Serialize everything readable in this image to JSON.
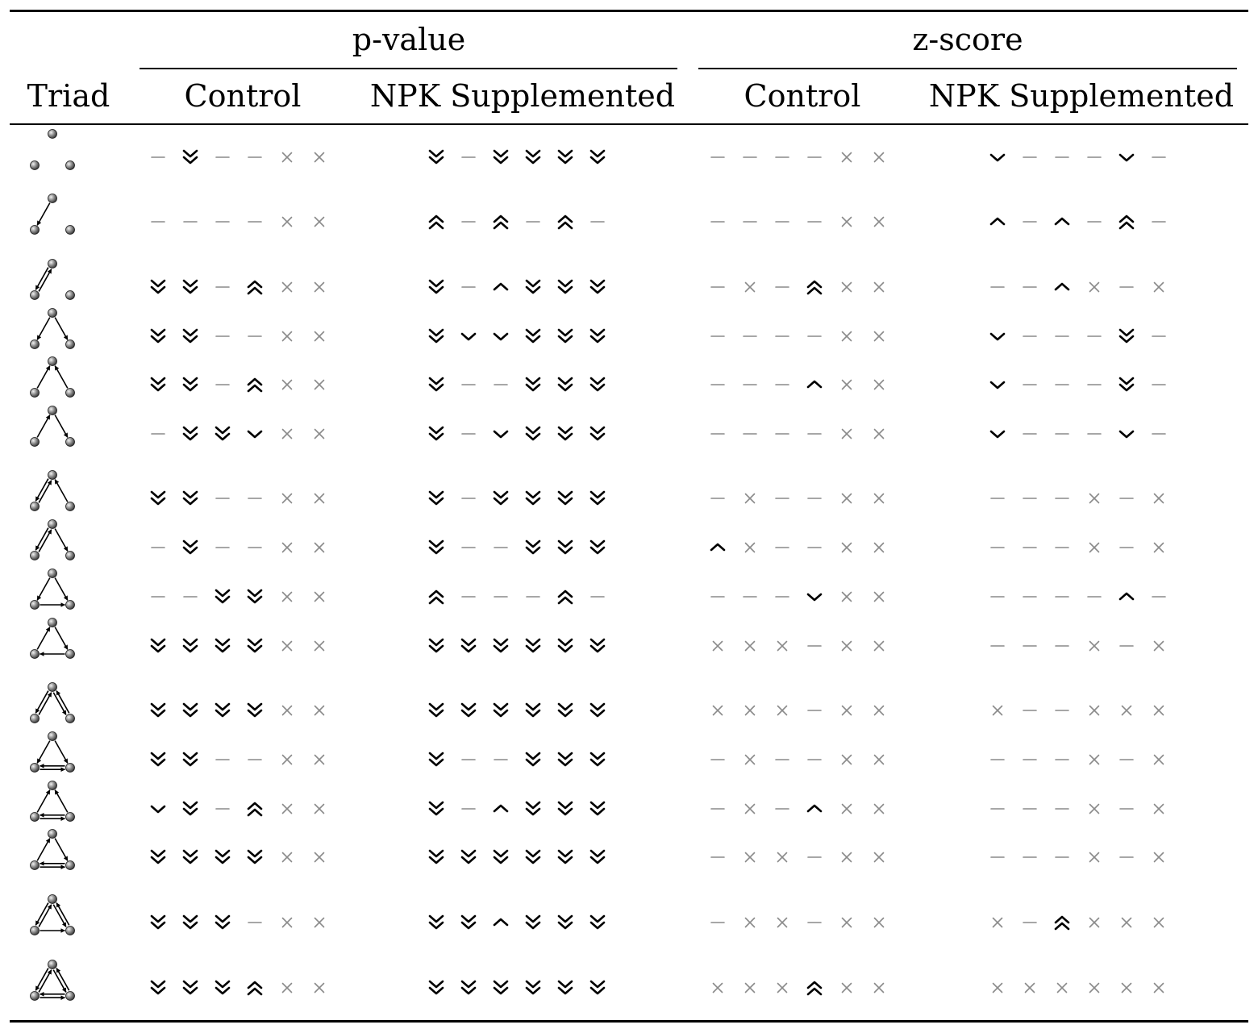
{
  "header": {
    "group_pvalue": "p-value",
    "group_zscore": "z-score",
    "triad": "Triad",
    "cols": [
      "Control",
      "NPK Supplemented",
      "Control",
      "NPK Supplemented"
    ]
  },
  "legend": {
    "dd": "strongly decreased",
    "d": "decreased",
    "n": "no change",
    "u": "increased",
    "uu": "strongly increased",
    "x": "not available"
  },
  "rows": [
    {
      "triad": "003",
      "edges": [],
      "pc": [
        "n",
        "dd",
        "n",
        "n",
        "x",
        "x"
      ],
      "pn": [
        "dd",
        "n",
        "dd",
        "dd",
        "dd",
        "dd"
      ],
      "zc": [
        "n",
        "n",
        "n",
        "n",
        "x",
        "x"
      ],
      "zn": [
        "d",
        "n",
        "n",
        "n",
        "d",
        "n"
      ]
    },
    {
      "triad": "012",
      "edges": [
        [
          "T",
          "L"
        ]
      ],
      "pc": [
        "n",
        "n",
        "n",
        "n",
        "x",
        "x"
      ],
      "pn": [
        "uu",
        "n",
        "uu",
        "n",
        "uu",
        "n"
      ],
      "zc": [
        "n",
        "n",
        "n",
        "n",
        "x",
        "x"
      ],
      "zn": [
        "u",
        "n",
        "u",
        "n",
        "uu",
        "n"
      ]
    },
    {
      "triad": "102",
      "edges": [
        [
          "T",
          "L"
        ],
        [
          "L",
          "T"
        ]
      ],
      "pc": [
        "dd",
        "dd",
        "n",
        "uu",
        "x",
        "x"
      ],
      "pn": [
        "dd",
        "n",
        "u",
        "dd",
        "dd",
        "dd"
      ],
      "zc": [
        "n",
        "x",
        "n",
        "uu",
        "x",
        "x"
      ],
      "zn": [
        "n",
        "n",
        "u",
        "x",
        "n",
        "x"
      ]
    },
    {
      "triad": "021D",
      "edges": [
        [
          "T",
          "L"
        ],
        [
          "T",
          "R"
        ]
      ],
      "pc": [
        "dd",
        "dd",
        "n",
        "n",
        "x",
        "x"
      ],
      "pn": [
        "dd",
        "d",
        "d",
        "dd",
        "dd",
        "dd"
      ],
      "zc": [
        "n",
        "n",
        "n",
        "n",
        "x",
        "x"
      ],
      "zn": [
        "d",
        "n",
        "n",
        "n",
        "dd",
        "n"
      ]
    },
    {
      "triad": "021U",
      "edges": [
        [
          "L",
          "T"
        ],
        [
          "R",
          "T"
        ]
      ],
      "pc": [
        "dd",
        "dd",
        "n",
        "uu",
        "x",
        "x"
      ],
      "pn": [
        "dd",
        "n",
        "n",
        "dd",
        "dd",
        "dd"
      ],
      "zc": [
        "n",
        "n",
        "n",
        "u",
        "x",
        "x"
      ],
      "zn": [
        "d",
        "n",
        "n",
        "n",
        "dd",
        "n"
      ]
    },
    {
      "triad": "021C",
      "edges": [
        [
          "L",
          "T"
        ],
        [
          "T",
          "R"
        ]
      ],
      "pc": [
        "n",
        "dd",
        "dd",
        "d",
        "x",
        "x"
      ],
      "pn": [
        "dd",
        "n",
        "d",
        "dd",
        "dd",
        "dd"
      ],
      "zc": [
        "n",
        "n",
        "n",
        "n",
        "x",
        "x"
      ],
      "zn": [
        "d",
        "n",
        "n",
        "n",
        "d",
        "n"
      ]
    },
    {
      "triad": "111D",
      "edges": [
        [
          "T",
          "L"
        ],
        [
          "L",
          "T"
        ],
        [
          "R",
          "T"
        ]
      ],
      "pc": [
        "dd",
        "dd",
        "n",
        "n",
        "x",
        "x"
      ],
      "pn": [
        "dd",
        "n",
        "dd",
        "dd",
        "dd",
        "dd"
      ],
      "zc": [
        "n",
        "x",
        "n",
        "n",
        "x",
        "x"
      ],
      "zn": [
        "n",
        "n",
        "n",
        "x",
        "n",
        "x"
      ]
    },
    {
      "triad": "111U",
      "edges": [
        [
          "T",
          "L"
        ],
        [
          "L",
          "T"
        ],
        [
          "T",
          "R"
        ]
      ],
      "pc": [
        "n",
        "dd",
        "n",
        "n",
        "x",
        "x"
      ],
      "pn": [
        "dd",
        "n",
        "n",
        "dd",
        "dd",
        "dd"
      ],
      "zc": [
        "u",
        "x",
        "n",
        "n",
        "x",
        "x"
      ],
      "zn": [
        "n",
        "n",
        "n",
        "x",
        "n",
        "x"
      ]
    },
    {
      "triad": "030T",
      "edges": [
        [
          "T",
          "L"
        ],
        [
          "T",
          "R"
        ],
        [
          "L",
          "R"
        ]
      ],
      "pc": [
        "n",
        "n",
        "dd",
        "dd",
        "x",
        "x"
      ],
      "pn": [
        "uu",
        "n",
        "n",
        "n",
        "uu",
        "n"
      ],
      "zc": [
        "n",
        "n",
        "n",
        "d",
        "x",
        "x"
      ],
      "zn": [
        "n",
        "n",
        "n",
        "n",
        "u",
        "n"
      ]
    },
    {
      "triad": "030C",
      "edges": [
        [
          "L",
          "T"
        ],
        [
          "T",
          "R"
        ],
        [
          "R",
          "L"
        ]
      ],
      "pc": [
        "dd",
        "dd",
        "dd",
        "dd",
        "x",
        "x"
      ],
      "pn": [
        "dd",
        "dd",
        "dd",
        "dd",
        "dd",
        "dd"
      ],
      "zc": [
        "x",
        "x",
        "x",
        "n",
        "x",
        "x"
      ],
      "zn": [
        "n",
        "n",
        "n",
        "x",
        "n",
        "x"
      ]
    },
    {
      "triad": "201",
      "edges": [
        [
          "T",
          "L"
        ],
        [
          "L",
          "T"
        ],
        [
          "T",
          "R"
        ],
        [
          "R",
          "T"
        ]
      ],
      "pc": [
        "dd",
        "dd",
        "dd",
        "dd",
        "x",
        "x"
      ],
      "pn": [
        "dd",
        "dd",
        "dd",
        "dd",
        "dd",
        "dd"
      ],
      "zc": [
        "x",
        "x",
        "x",
        "n",
        "x",
        "x"
      ],
      "zn": [
        "x",
        "n",
        "n",
        "x",
        "x",
        "x"
      ]
    },
    {
      "triad": "120D",
      "edges": [
        [
          "T",
          "L"
        ],
        [
          "T",
          "R"
        ],
        [
          "L",
          "R"
        ],
        [
          "R",
          "L"
        ]
      ],
      "pc": [
        "dd",
        "dd",
        "n",
        "n",
        "x",
        "x"
      ],
      "pn": [
        "dd",
        "n",
        "n",
        "dd",
        "dd",
        "dd"
      ],
      "zc": [
        "n",
        "x",
        "n",
        "n",
        "x",
        "x"
      ],
      "zn": [
        "n",
        "n",
        "n",
        "x",
        "n",
        "x"
      ]
    },
    {
      "triad": "120U",
      "edges": [
        [
          "L",
          "T"
        ],
        [
          "R",
          "T"
        ],
        [
          "L",
          "R"
        ],
        [
          "R",
          "L"
        ]
      ],
      "pc": [
        "d",
        "dd",
        "n",
        "uu",
        "x",
        "x"
      ],
      "pn": [
        "dd",
        "n",
        "u",
        "dd",
        "dd",
        "dd"
      ],
      "zc": [
        "n",
        "x",
        "n",
        "u",
        "x",
        "x"
      ],
      "zn": [
        "n",
        "n",
        "n",
        "x",
        "n",
        "x"
      ]
    },
    {
      "triad": "120C",
      "edges": [
        [
          "L",
          "T"
        ],
        [
          "T",
          "R"
        ],
        [
          "L",
          "R"
        ],
        [
          "R",
          "L"
        ]
      ],
      "pc": [
        "dd",
        "dd",
        "dd",
        "dd",
        "x",
        "x"
      ],
      "pn": [
        "dd",
        "dd",
        "dd",
        "dd",
        "dd",
        "dd"
      ],
      "zc": [
        "n",
        "x",
        "x",
        "n",
        "x",
        "x"
      ],
      "zn": [
        "n",
        "n",
        "n",
        "x",
        "n",
        "x"
      ]
    },
    {
      "triad": "210",
      "edges": [
        [
          "T",
          "L"
        ],
        [
          "L",
          "T"
        ],
        [
          "T",
          "R"
        ],
        [
          "R",
          "T"
        ],
        [
          "L",
          "R"
        ]
      ],
      "pc": [
        "dd",
        "dd",
        "dd",
        "n",
        "x",
        "x"
      ],
      "pn": [
        "dd",
        "dd",
        "u",
        "dd",
        "dd",
        "dd"
      ],
      "zc": [
        "n",
        "x",
        "x",
        "n",
        "x",
        "x"
      ],
      "zn": [
        "x",
        "n",
        "uu",
        "x",
        "x",
        "x"
      ]
    },
    {
      "triad": "300",
      "edges": [
        [
          "T",
          "L"
        ],
        [
          "L",
          "T"
        ],
        [
          "T",
          "R"
        ],
        [
          "R",
          "T"
        ],
        [
          "L",
          "R"
        ],
        [
          "R",
          "L"
        ]
      ],
      "pc": [
        "dd",
        "dd",
        "dd",
        "uu",
        "x",
        "x"
      ],
      "pn": [
        "dd",
        "dd",
        "dd",
        "dd",
        "dd",
        "dd"
      ],
      "zc": [
        "x",
        "x",
        "x",
        "uu",
        "x",
        "x"
      ],
      "zn": [
        "x",
        "x",
        "x",
        "x",
        "x",
        "x"
      ]
    }
  ]
}
